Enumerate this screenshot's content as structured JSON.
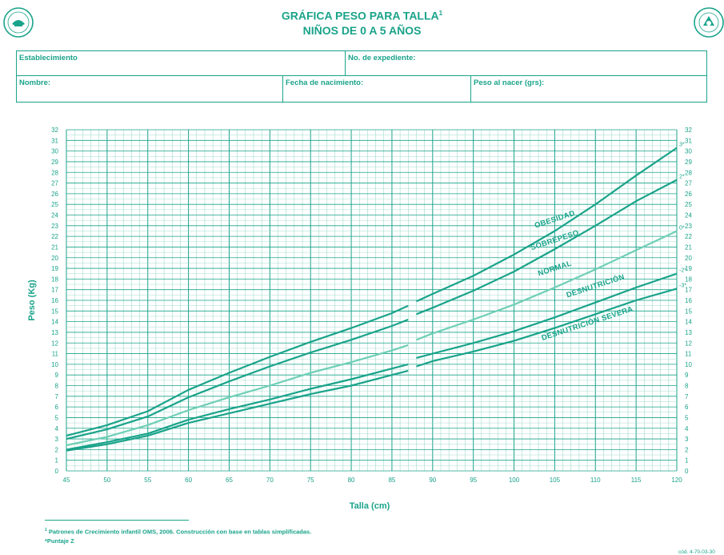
{
  "header": {
    "title": "GRÁFICA PESO PARA TALLA",
    "title_footnote_mark": "1",
    "subtitle": "NIÑOS DE 0 A 5 AÑOS",
    "logo_left_icon": "seguro-social-seal-icon",
    "logo_right_icon": "organization-seal-icon"
  },
  "form": {
    "establecimiento": "Establecimiento",
    "expediente": "No. de expediente:",
    "nombre": "Nombre:",
    "fecha_nacimiento": "Fecha de nacimiento:",
    "peso_nacer": "Peso al nacer (grs):"
  },
  "footnotes": {
    "note1_mark": "1",
    "note1": "Patrones de Crecimiento infantil OMS, 2006. Construcción con base en tablas simplificadas.",
    "note2": "*Puntaje   Z"
  },
  "form_code": "cód. 4-70-03-30",
  "colors": {
    "primary": "#1aa38a",
    "curve_normal": "#6fcfb6",
    "grid_minor": "#8fd6c5"
  },
  "chart_data": {
    "type": "line",
    "xlabel": "Talla (cm)",
    "ylabel": "Peso (Kg)",
    "xlim": [
      45,
      120
    ],
    "ylim": [
      0,
      32
    ],
    "x_ticks": [
      45,
      50,
      55,
      60,
      65,
      70,
      75,
      80,
      85,
      90,
      95,
      100,
      105,
      110,
      115,
      120
    ],
    "y_ticks": [
      0,
      1,
      2,
      3,
      4,
      5,
      6,
      7,
      8,
      9,
      10,
      11,
      12,
      13,
      14,
      15,
      16,
      17,
      18,
      19,
      20,
      21,
      22,
      23,
      24,
      25,
      26,
      27,
      28,
      29,
      30,
      31,
      32
    ],
    "grid": true,
    "gap_x": 87.5,
    "x": [
      45,
      50,
      55,
      60,
      65,
      70,
      75,
      80,
      85,
      87,
      88,
      90,
      95,
      100,
      105,
      110,
      115,
      120
    ],
    "series": [
      {
        "name": "3*",
        "values": [
          3.3,
          4.3,
          5.6,
          7.6,
          9.2,
          10.7,
          12.1,
          13.4,
          14.8,
          15.5,
          15.9,
          16.6,
          18.3,
          20.3,
          22.5,
          25.0,
          27.7,
          30.3
        ]
      },
      {
        "name": "2*",
        "values": [
          3.0,
          3.9,
          5.1,
          6.9,
          8.4,
          9.8,
          11.1,
          12.3,
          13.6,
          14.2,
          14.7,
          15.3,
          16.9,
          18.7,
          20.8,
          23.0,
          25.3,
          27.3
        ]
      },
      {
        "name": "0*",
        "values": [
          2.4,
          3.2,
          4.3,
          5.7,
          6.9,
          8.0,
          9.2,
          10.2,
          11.3,
          11.8,
          12.3,
          12.9,
          14.2,
          15.6,
          17.2,
          18.9,
          20.7,
          22.5
        ]
      },
      {
        "name": "-2*",
        "values": [
          2.0,
          2.7,
          3.5,
          4.8,
          5.8,
          6.7,
          7.7,
          8.6,
          9.6,
          10.0,
          10.6,
          11.0,
          12.0,
          13.1,
          14.4,
          15.8,
          17.2,
          18.5
        ]
      },
      {
        "name": "-3*",
        "values": [
          1.9,
          2.5,
          3.3,
          4.5,
          5.4,
          6.3,
          7.2,
          8.0,
          9.0,
          9.4,
          9.8,
          10.3,
          11.2,
          12.2,
          13.4,
          14.7,
          16.0,
          17.1
        ]
      }
    ],
    "zone_labels": [
      "OBESIDAD",
      "SOBREPESO",
      "NORMAL",
      "DESNUTRICIÓN",
      "DESNUTRICIÓN SEVERA"
    ]
  }
}
